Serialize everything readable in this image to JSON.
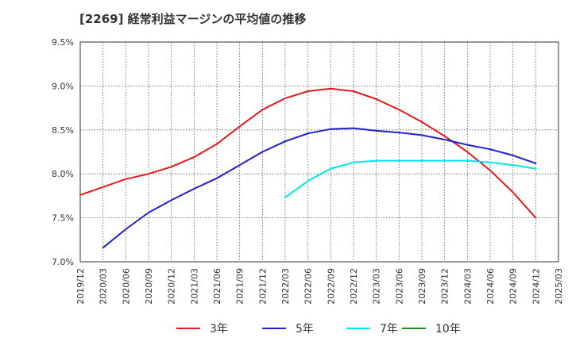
{
  "chart_data": {
    "type": "line",
    "title": "[2269]  経常利益マージンの平均値の推移",
    "xlabel": "",
    "ylabel": "",
    "ylim": [
      7.0,
      9.5
    ],
    "y_ticks": [
      "7.0%",
      "7.5%",
      "8.0%",
      "8.5%",
      "9.0%",
      "9.5%"
    ],
    "y_tick_values": [
      7.0,
      7.5,
      8.0,
      8.5,
      9.0,
      9.5
    ],
    "x_ticks": [
      "2019/12",
      "2020/03",
      "2020/06",
      "2020/09",
      "2020/12",
      "2021/03",
      "2021/06",
      "2021/09",
      "2021/12",
      "2022/03",
      "2022/06",
      "2022/09",
      "2022/12",
      "2023/03",
      "2023/06",
      "2023/09",
      "2023/12",
      "2024/03",
      "2024/06",
      "2024/09",
      "2024/12",
      "2025/03"
    ],
    "grid": true,
    "legend_position": "bottom",
    "series": [
      {
        "name": "3年",
        "color": "#e31a1c",
        "x": [
          "2019/12",
          "2020/03",
          "2020/06",
          "2020/09",
          "2020/12",
          "2021/03",
          "2021/06",
          "2021/09",
          "2021/12",
          "2022/03",
          "2022/06",
          "2022/09",
          "2022/12",
          "2023/03",
          "2023/06",
          "2023/09",
          "2023/12",
          "2024/03",
          "2024/06",
          "2024/09",
          "2024/12"
        ],
        "values": [
          7.76,
          7.85,
          7.94,
          8.0,
          8.08,
          8.19,
          8.34,
          8.54,
          8.73,
          8.86,
          8.94,
          8.97,
          8.94,
          8.85,
          8.73,
          8.59,
          8.43,
          8.25,
          8.04,
          7.79,
          7.5
        ]
      },
      {
        "name": "5年",
        "color": "#1f1fcc",
        "x": [
          "2020/03",
          "2020/06",
          "2020/09",
          "2020/12",
          "2021/03",
          "2021/06",
          "2021/09",
          "2021/12",
          "2022/03",
          "2022/06",
          "2022/09",
          "2022/12",
          "2023/03",
          "2023/06",
          "2023/09",
          "2023/12",
          "2024/03",
          "2024/06",
          "2024/09",
          "2024/12"
        ],
        "values": [
          7.16,
          7.37,
          7.56,
          7.7,
          7.83,
          7.95,
          8.1,
          8.25,
          8.37,
          8.46,
          8.51,
          8.52,
          8.49,
          8.47,
          8.44,
          8.39,
          8.33,
          8.28,
          8.21,
          8.12
        ]
      },
      {
        "name": "7年",
        "color": "#00e5e5",
        "x": [
          "2022/03",
          "2022/06",
          "2022/09",
          "2022/12",
          "2023/03",
          "2023/06",
          "2023/09",
          "2023/12",
          "2024/03",
          "2024/06",
          "2024/09",
          "2024/12"
        ],
        "values": [
          7.73,
          7.92,
          8.06,
          8.13,
          8.15,
          8.15,
          8.15,
          8.15,
          8.15,
          8.13,
          8.1,
          8.06
        ]
      },
      {
        "name": "10年",
        "color": "#228b22",
        "x": [],
        "values": []
      }
    ]
  }
}
